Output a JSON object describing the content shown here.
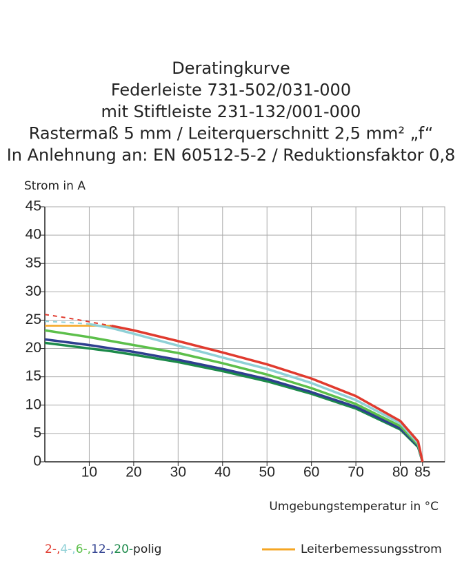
{
  "chart_data": {
    "type": "line",
    "title": [
      "Deratingkurve",
      "Federleiste 731-502/031-000",
      "mit Stiftleiste 231-132/001-000",
      "Rastermaß 5 mm / Leiterquerschnitt 2,5 mm² „f“",
      "In Anlehnung an: EN 60512-5-2 / Reduktionsfaktor 0,8"
    ],
    "y_label": "Strom in A",
    "x_label": "Umgebungstemperatur in °C",
    "x": [
      0,
      5,
      10,
      15,
      20,
      30,
      40,
      50,
      60,
      70,
      80,
      84,
      85
    ],
    "xlim": [
      0,
      90
    ],
    "ylim": [
      0,
      45
    ],
    "xticks": [
      10,
      20,
      30,
      40,
      50,
      60,
      70,
      80,
      85
    ],
    "yticks": [
      0,
      5,
      10,
      15,
      20,
      25,
      30,
      35,
      40,
      45
    ],
    "grid": true,
    "legend_suffix": "polig",
    "series": [
      {
        "name": "2-,",
        "color": "#e03a2e",
        "values": [
          null,
          null,
          null,
          24.0,
          23.2,
          21.3,
          19.3,
          17.2,
          14.7,
          11.6,
          7.2,
          3.6,
          0
        ],
        "extrapolated": [
          26.0,
          25.4,
          24.7,
          24.0,
          null,
          null,
          null,
          null,
          null,
          null,
          null,
          null,
          null
        ]
      },
      {
        "name": "4-,",
        "color": "#8fd0d6",
        "values": [
          null,
          null,
          24.3,
          23.6,
          22.6,
          20.5,
          18.4,
          16.4,
          13.9,
          10.9,
          6.8,
          3.3,
          0
        ],
        "extrapolated": [
          24.8,
          24.6,
          24.3,
          null,
          null,
          null,
          null,
          null,
          null,
          null,
          null,
          null,
          null
        ]
      },
      {
        "name": "6-,",
        "color": "#5cbf4a",
        "values": [
          23.2,
          22.6,
          22.0,
          21.3,
          20.6,
          19.2,
          17.4,
          15.4,
          13.0,
          10.2,
          6.3,
          3.0,
          0
        ]
      },
      {
        "name": "12-,",
        "color": "#2e3e8f",
        "values": [
          21.6,
          21.1,
          20.6,
          20.0,
          19.4,
          18.0,
          16.4,
          14.6,
          12.3,
          9.7,
          5.9,
          2.8,
          0
        ]
      },
      {
        "name": "20-",
        "color": "#1c8a4a",
        "values": [
          21.0,
          20.5,
          20.0,
          19.5,
          18.9,
          17.6,
          16.0,
          14.2,
          12.0,
          9.4,
          5.7,
          2.6,
          0
        ]
      }
    ],
    "rated_current": {
      "name": "Leiterbemessungsstrom",
      "color": "#f5a623",
      "values": [
        24,
        24,
        24,
        24,
        null,
        null,
        null,
        null,
        null,
        null,
        null,
        null,
        null
      ]
    }
  }
}
